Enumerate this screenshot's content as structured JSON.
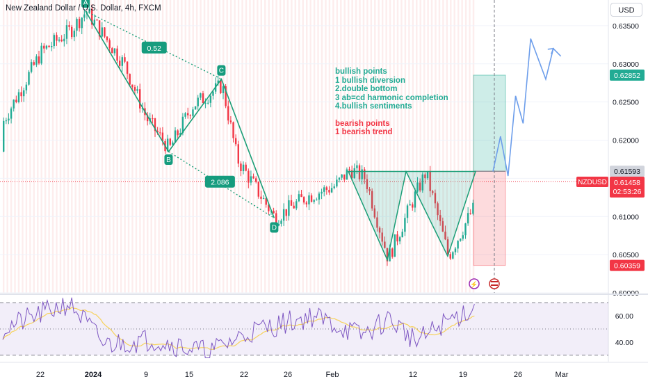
{
  "header": {
    "title": "New Zealand Dollar / U.S. Dollar, 4h, FXCM",
    "currency": "USD"
  },
  "annotations": {
    "bullish_title": "bullish points",
    "bullish_items": [
      "1 bullish diversion",
      "2.double bottom",
      "3 ab=cd harmonic completion",
      "4.bullish sentiments"
    ],
    "bearish_title": "bearish points",
    "bearish_items": [
      "1 bearish trend"
    ]
  },
  "price_labels": {
    "target": "0.62852",
    "entry": "0.61593",
    "symbol": "NZDUSD",
    "current": "0.61458",
    "countdown": "02:53:26",
    "stop": "0.60359"
  },
  "colors": {
    "up": "#22ab94",
    "down": "#f23645",
    "rsi": "#7e57c2",
    "rsi_ma": "#f7d25c",
    "projection": "#6d9eeb",
    "pattern": "#1b9e77"
  },
  "chart_data": [
    {
      "type": "candlestick",
      "symbol": "NZDUSD",
      "timeframe": "4h",
      "y_axis_ticks": [
        "0.63500",
        "0.63000",
        "0.62500",
        "0.62000",
        "0.61500",
        "0.61000",
        "0.60500",
        "0.60000"
      ],
      "ylim": [
        0.6,
        0.638
      ],
      "x_axis_ticks": [
        "22",
        "2024",
        "9",
        "15",
        "22",
        "26",
        "Feb",
        "12",
        "19",
        "26",
        "Mar"
      ],
      "harmonic_points": [
        {
          "label": "A",
          "date": "2023-12-28",
          "price": 0.6369
        },
        {
          "label": "B",
          "date": "2024-01-08",
          "price": 0.6185
        },
        {
          "label": "C",
          "date": "2024-01-15",
          "price": 0.628
        },
        {
          "label": "D",
          "date": "2024-01-22",
          "price": 0.6098
        }
      ],
      "ratios": [
        "0.52",
        "2.086"
      ],
      "double_bottom": {
        "neckline": 0.6159,
        "bottoms": [
          {
            "date": "2024-02-06",
            "price": 0.6043
          },
          {
            "date": "2024-02-14",
            "price": 0.6048
          }
        ]
      },
      "trade_setup": {
        "entry": 0.61593,
        "target": 0.62852,
        "stop": 0.60359,
        "current": 0.61458
      },
      "projection_path": [
        {
          "date": "2024-02-20",
          "price": 0.6159
        },
        {
          "date": "2024-02-21",
          "price": 0.6205
        },
        {
          "date": "2024-02-22",
          "price": 0.6153
        },
        {
          "date": "2024-02-23",
          "price": 0.6258
        },
        {
          "date": "2024-02-24",
          "price": 0.6222
        },
        {
          "date": "2024-02-25",
          "price": 0.6333
        },
        {
          "date": "2024-02-27",
          "price": 0.628
        },
        {
          "date": "2024-02-28",
          "price": 0.632
        },
        {
          "date": "2024-02-29",
          "price": 0.631
        }
      ]
    },
    {
      "type": "line",
      "name_hidden": true,
      "indicator": "RSI",
      "y_axis_ticks": [
        "60.00",
        "40.00"
      ],
      "ylim": [
        25,
        75
      ],
      "levels": [
        70,
        50,
        30
      ]
    }
  ]
}
